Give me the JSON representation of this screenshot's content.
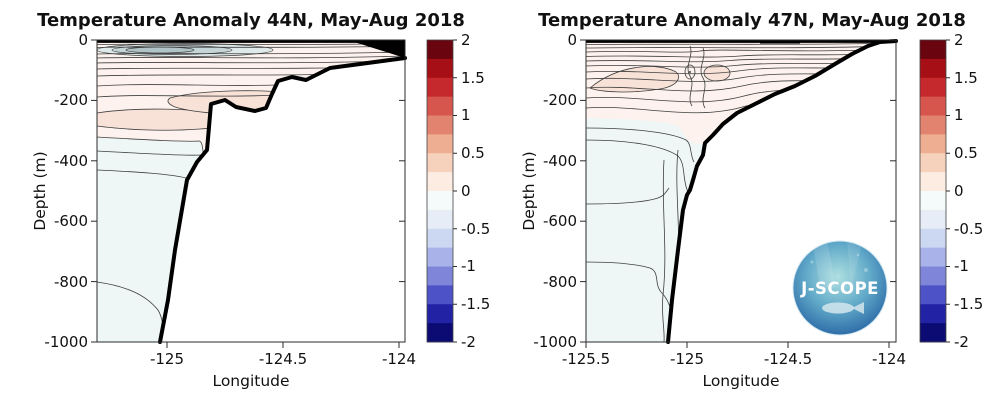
{
  "panels": [
    {
      "title": "Temperature Anomaly 44N, May-Aug 2018",
      "xlabel": "Longitude",
      "ylabel": "Depth (m)",
      "yticks": [
        "0",
        "-200",
        "-400",
        "-600",
        "-800",
        "-1000"
      ],
      "xticks": [
        "-125",
        "-124.5",
        "-124"
      ]
    },
    {
      "title": "Temperature Anomaly 47N, May-Aug 2018",
      "xlabel": "Longitude",
      "ylabel": "Depth (m)",
      "yticks": [
        "0",
        "-200",
        "-400",
        "-600",
        "-800",
        "-1000"
      ],
      "xticks": [
        "-125.5",
        "-125",
        "-124.5",
        "-124"
      ]
    }
  ],
  "colorbar": {
    "ticks": [
      "2",
      "1.5",
      "1",
      "0.5",
      "0",
      "-0.5",
      "-1",
      "-1.5",
      "-2"
    ],
    "colors": [
      "#6a040f",
      "#a50f15",
      "#c5292e",
      "#d6564e",
      "#e2836f",
      "#eeae92",
      "#f6d2bd",
      "#fcece1",
      "#f4fbfa",
      "#e7edf7",
      "#ccd7f1",
      "#a9b3e9",
      "#7f86da",
      "#4d52c6",
      "#2222a5",
      "#0b0b73"
    ]
  },
  "logo": {
    "label": "J-SCOPE"
  },
  "colors": {
    "pale_blue": "#eef6f6",
    "pale_pink": "#fdf2ed",
    "pink": "#f8e2d8",
    "contour_line": "#3f3f3f",
    "bathymetry": "#000000"
  },
  "chart_data": [
    {
      "type": "contour",
      "title": "Temperature Anomaly 44N, May-Aug 2018",
      "xlabel": "Longitude",
      "ylabel": "Depth (m)",
      "xlim": [
        -125.3,
        -123.97
      ],
      "ylim": [
        -1000,
        0
      ],
      "colorbar_range": [
        -2,
        2
      ],
      "colorbar_tick_step": 0.5,
      "colorbar_bands": 16,
      "colormap": "blue-white-red diverging (negative blue, positive red)",
      "field_summary": "Weak warm anomaly (~+0.25 to +0.5) in the upper ~250 m offshore of the shelf; near-zero to slightly negative anomaly (0 to -0.25) from ~300 m to 1000 m; thin mixed near-zero layer at the surface",
      "anomaly_vs_depth_estimate": [
        [
          0,
          0.0
        ],
        [
          -50,
          0.3
        ],
        [
          -100,
          0.45
        ],
        [
          -150,
          0.35
        ],
        [
          -200,
          0.2
        ],
        [
          -300,
          0.05
        ],
        [
          -500,
          -0.05
        ],
        [
          -800,
          -0.05
        ],
        [
          -1000,
          -0.05
        ]
      ],
      "bathymetry_lon_depth": [
        [
          -125.03,
          -1000
        ],
        [
          -125.0,
          -861
        ],
        [
          -124.97,
          -695
        ],
        [
          -124.91,
          -464
        ],
        [
          -124.87,
          -404
        ],
        [
          -124.83,
          -364
        ],
        [
          -124.81,
          -212
        ],
        [
          -124.75,
          -199
        ],
        [
          -124.7,
          -222
        ],
        [
          -124.62,
          -235
        ],
        [
          -124.57,
          -225
        ],
        [
          -124.55,
          -179
        ],
        [
          -124.52,
          -136
        ],
        [
          -124.46,
          -123
        ],
        [
          -124.4,
          -132
        ],
        [
          -124.35,
          -113
        ],
        [
          -124.3,
          -93
        ],
        [
          -124.25,
          -56
        ],
        [
          -124.2,
          -20
        ],
        [
          -123.97,
          0
        ]
      ]
    },
    {
      "type": "contour",
      "title": "Temperature Anomaly 47N, May-Aug 2018",
      "xlabel": "Longitude",
      "ylabel": "Depth (m)",
      "xlim": [
        -125.5,
        -123.97
      ],
      "ylim": [
        -1000,
        0
      ],
      "colorbar_range": [
        -2,
        2
      ],
      "colorbar_tick_step": 0.5,
      "colorbar_bands": 16,
      "colormap": "blue-white-red diverging (negative blue, positive red)",
      "field_summary": "Densely stratified weak warm anomaly (~+0.25 to +0.4) in the upper ~200 m with closed warm cells near -125W; near-zero to slightly negative anomaly below ~250 m down to 1000 m",
      "anomaly_vs_depth_estimate": [
        [
          0,
          0.0
        ],
        [
          -50,
          0.25
        ],
        [
          -100,
          0.4
        ],
        [
          -150,
          0.3
        ],
        [
          -200,
          0.15
        ],
        [
          -300,
          0.0
        ],
        [
          -500,
          -0.05
        ],
        [
          -800,
          -0.05
        ],
        [
          -1000,
          -0.05
        ]
      ],
      "bathymetry_lon_depth": [
        [
          -125.09,
          -1000
        ],
        [
          -125.07,
          -860
        ],
        [
          -125.04,
          -695
        ],
        [
          -125.02,
          -563
        ],
        [
          -124.99,
          -497
        ],
        [
          -124.95,
          -417
        ],
        [
          -124.92,
          -381
        ],
        [
          -124.91,
          -341
        ],
        [
          -124.87,
          -315
        ],
        [
          -124.82,
          -278
        ],
        [
          -124.75,
          -242
        ],
        [
          -124.66,
          -212
        ],
        [
          -124.56,
          -179
        ],
        [
          -124.47,
          -152
        ],
        [
          -124.37,
          -119
        ],
        [
          -124.27,
          -79
        ],
        [
          -124.18,
          -46
        ],
        [
          -124.04,
          -20
        ],
        [
          -123.97,
          0
        ]
      ]
    }
  ]
}
